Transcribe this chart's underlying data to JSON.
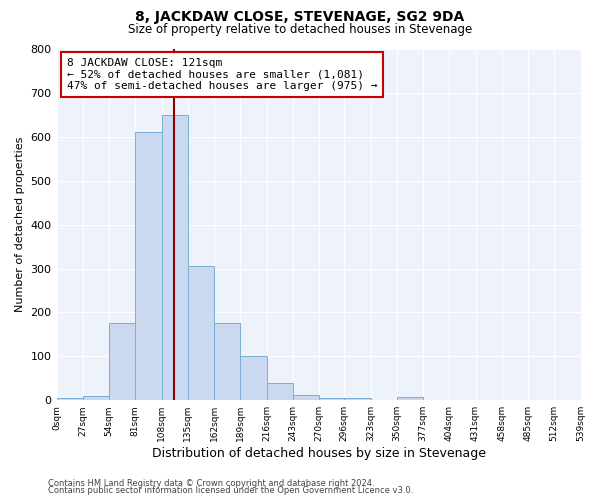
{
  "title": "8, JACKDAW CLOSE, STEVENAGE, SG2 9DA",
  "subtitle": "Size of property relative to detached houses in Stevenage",
  "xlabel": "Distribution of detached houses by size in Stevenage",
  "ylabel": "Number of detached properties",
  "bin_edges": [
    0,
    27,
    54,
    81,
    108,
    135,
    162,
    189,
    216,
    243,
    270,
    296,
    323,
    350,
    377,
    404,
    431,
    458,
    485,
    512,
    539
  ],
  "bin_counts": [
    5,
    10,
    175,
    610,
    650,
    305,
    175,
    100,
    40,
    12,
    5,
    5,
    0,
    7,
    0,
    0,
    0,
    0,
    0,
    0
  ],
  "bar_color": "#cad9ef",
  "bar_edge_color": "#7aafd4",
  "property_size": 121,
  "vline_color": "#8b0000",
  "annotation_line1": "8 JACKDAW CLOSE: 121sqm",
  "annotation_line2": "← 52% of detached houses are smaller (1,081)",
  "annotation_line3": "47% of semi-detached houses are larger (975) →",
  "annotation_box_color": "white",
  "annotation_box_edge": "#cc0000",
  "ylim": [
    0,
    800
  ],
  "background_color": "#eef2fb",
  "footer_line1": "Contains HM Land Registry data © Crown copyright and database right 2024.",
  "footer_line2": "Contains public sector information licensed under the Open Government Licence v3.0.",
  "tick_labels": [
    "0sqm",
    "27sqm",
    "54sqm",
    "81sqm",
    "108sqm",
    "135sqm",
    "162sqm",
    "189sqm",
    "216sqm",
    "243sqm",
    "270sqm",
    "296sqm",
    "323sqm",
    "350sqm",
    "377sqm",
    "404sqm",
    "431sqm",
    "458sqm",
    "485sqm",
    "512sqm",
    "539sqm"
  ]
}
